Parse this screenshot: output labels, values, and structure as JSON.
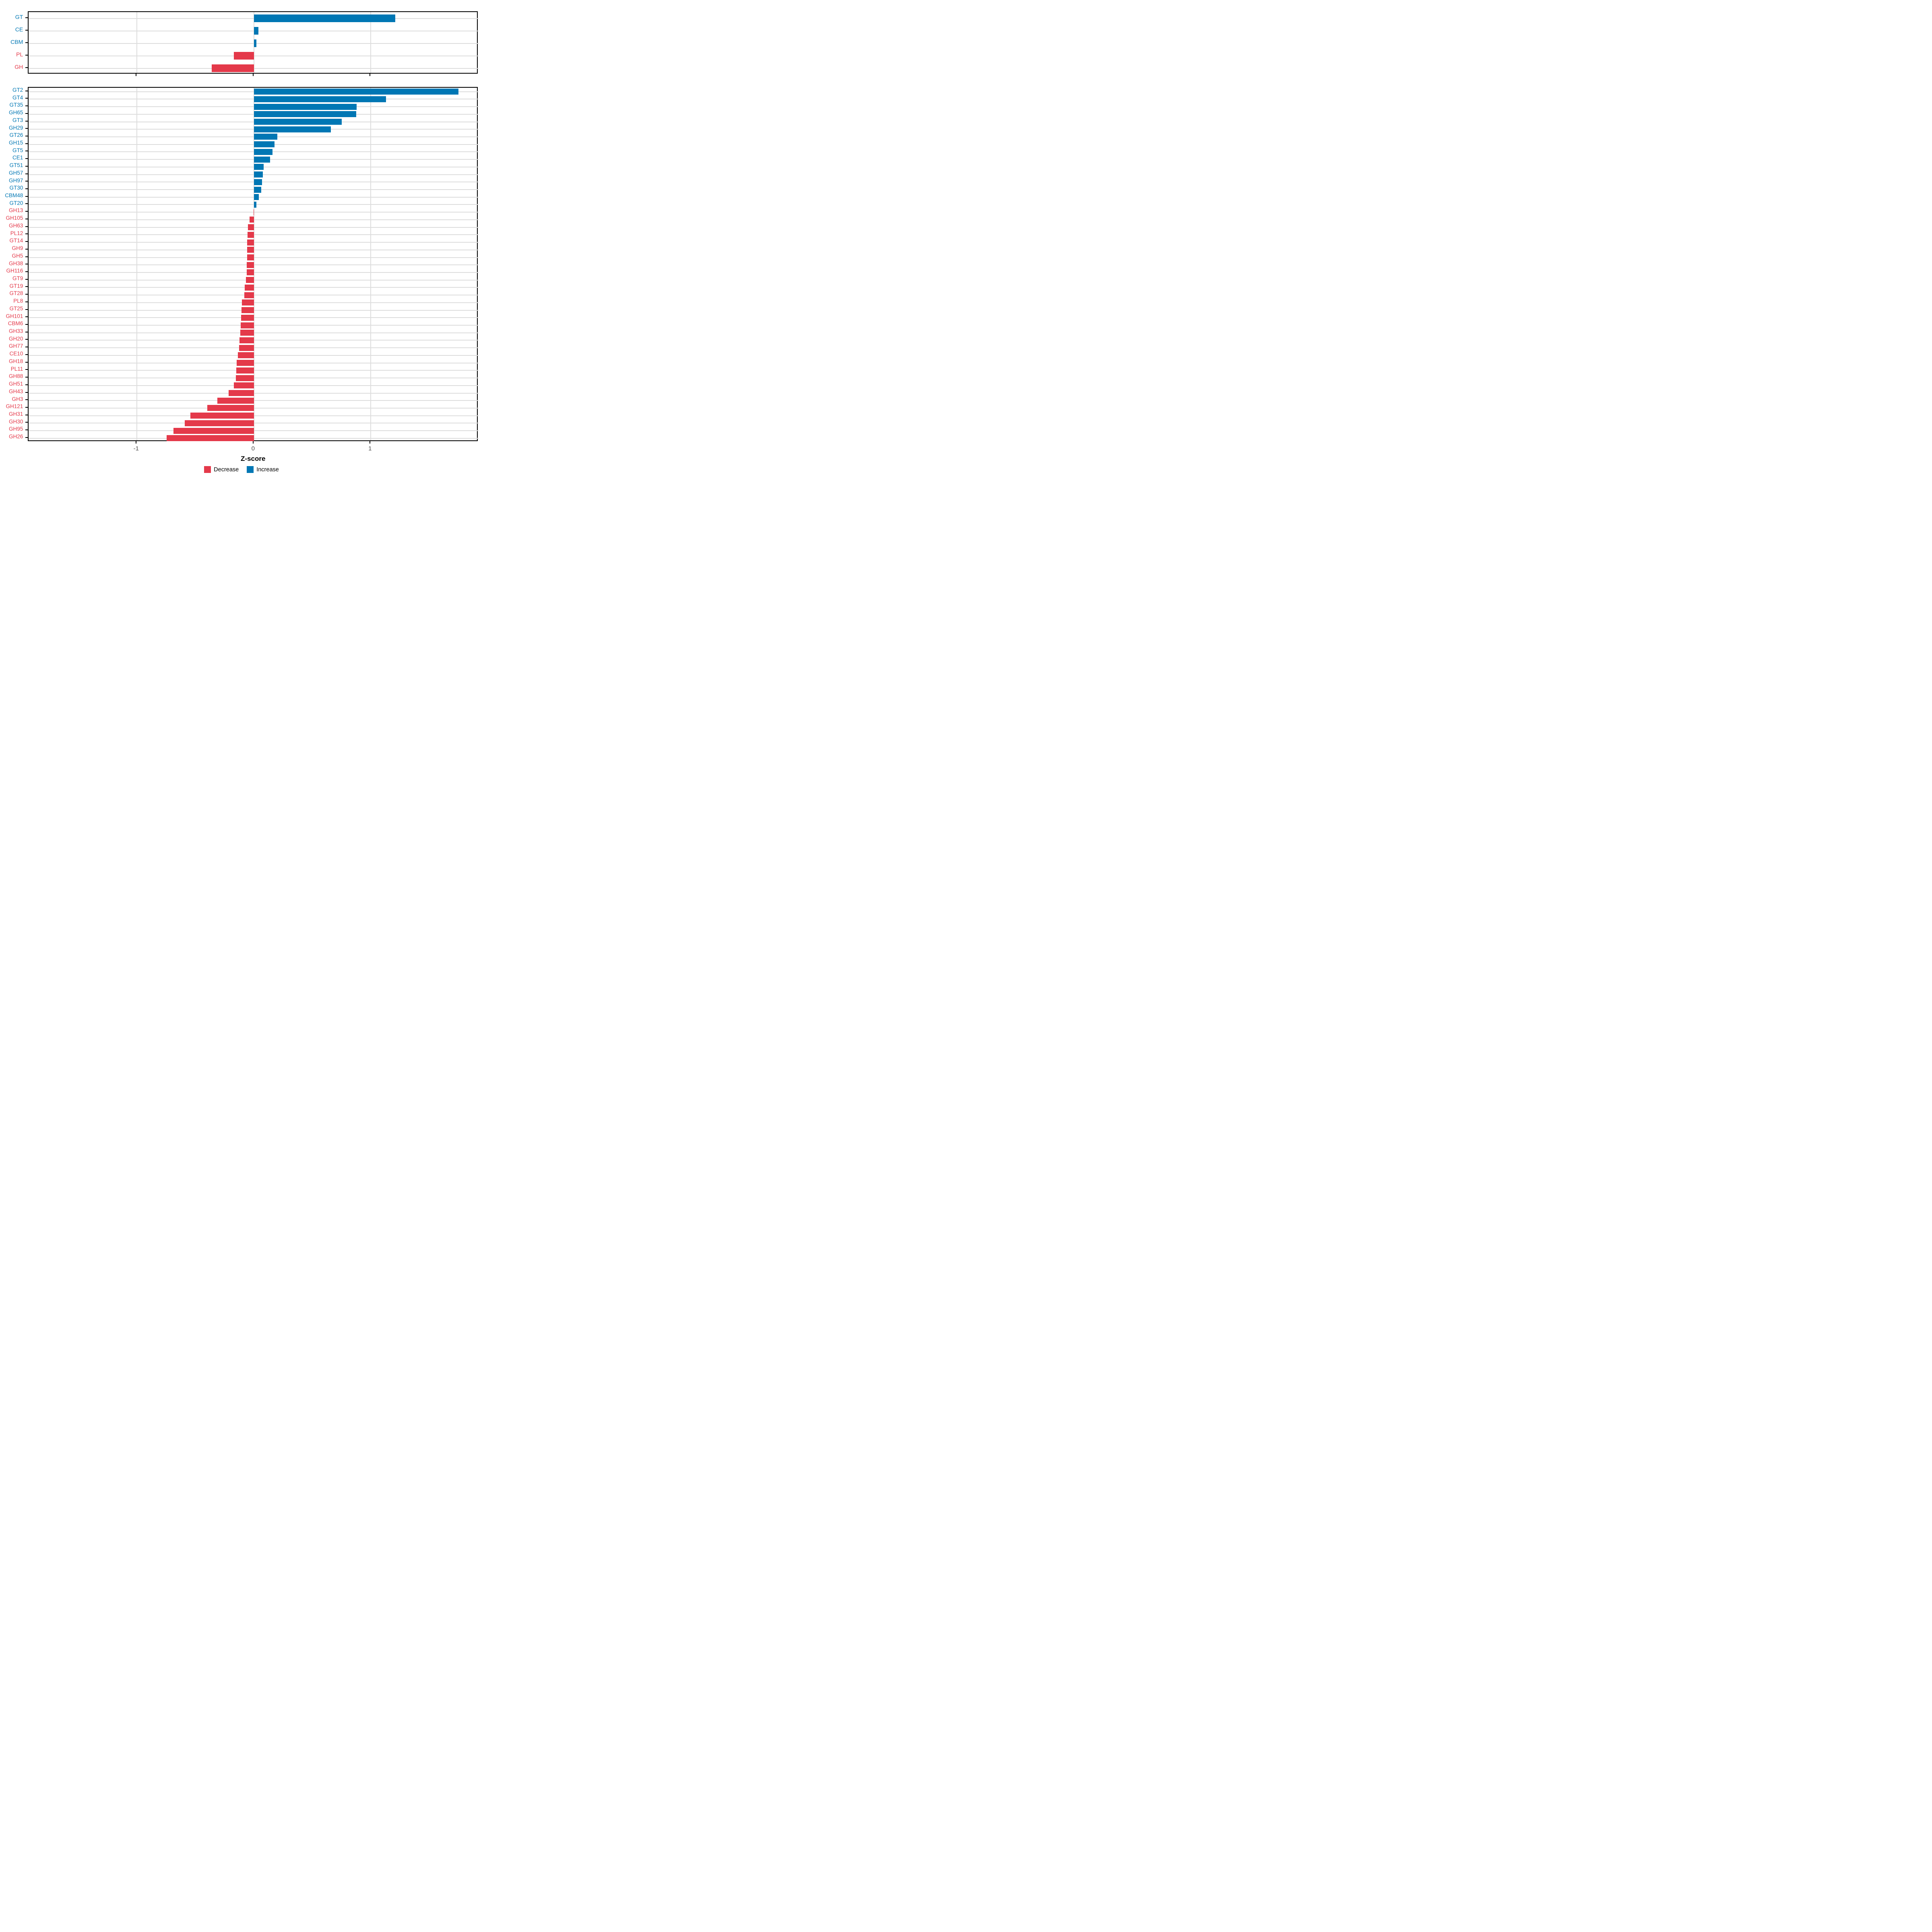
{
  "chart_data": [
    {
      "type": "bar",
      "orientation": "horizontal",
      "panel": "top",
      "title": "",
      "xlabel": "",
      "ylabel": "",
      "xlim": [
        -1.93,
        1.92
      ],
      "grid": true,
      "categories": [
        "GT",
        "CE",
        "CBM",
        "PL",
        "GH"
      ],
      "values": [
        1.21,
        0.04,
        0.02,
        -0.17,
        -0.36
      ],
      "directions": [
        "Increase",
        "Increase",
        "Increase",
        "Decrease",
        "Decrease"
      ]
    },
    {
      "type": "bar",
      "orientation": "horizontal",
      "panel": "bottom",
      "title": "",
      "xlabel": "Z-score",
      "ylabel": "",
      "xlim": [
        -1.93,
        1.92
      ],
      "grid": true,
      "categories": [
        "GT2",
        "GT4",
        "GT35",
        "GH65",
        "GT3",
        "GH29",
        "GT26",
        "GH15",
        "GT5",
        "CE1",
        "GT51",
        "GH57",
        "GH97",
        "GT30",
        "CBM48",
        "GT20",
        "GH13",
        "GH105",
        "GH63",
        "PL12",
        "GT14",
        "GH9",
        "GH5",
        "GH38",
        "GH116",
        "GT9",
        "GT19",
        "GT28",
        "PL8",
        "GT25",
        "GH101",
        "CBM6",
        "GH33",
        "GH20",
        "GH77",
        "CE10",
        "GH18",
        "PL11",
        "GH88",
        "GH51",
        "GH43",
        "GH3",
        "GH121",
        "GH31",
        "GH30",
        "GH95",
        "GH26"
      ],
      "values": [
        1.75,
        1.13,
        0.88,
        0.875,
        0.75,
        0.66,
        0.2,
        0.175,
        0.16,
        0.14,
        0.083,
        0.078,
        0.071,
        0.063,
        0.043,
        0.022,
        -0.003,
        -0.037,
        -0.05,
        -0.055,
        -0.057,
        -0.058,
        -0.059,
        -0.06,
        -0.062,
        -0.068,
        -0.077,
        -0.082,
        -0.104,
        -0.107,
        -0.11,
        -0.112,
        -0.116,
        -0.124,
        -0.127,
        -0.137,
        -0.146,
        -0.15,
        -0.155,
        -0.171,
        -0.217,
        -0.313,
        -0.399,
        -0.543,
        -0.59,
        -0.686,
        -0.745
      ],
      "directions": [
        "Increase",
        "Increase",
        "Increase",
        "Increase",
        "Increase",
        "Increase",
        "Increase",
        "Increase",
        "Increase",
        "Increase",
        "Increase",
        "Increase",
        "Increase",
        "Increase",
        "Increase",
        "Increase",
        "Decrease",
        "Decrease",
        "Decrease",
        "Decrease",
        "Decrease",
        "Decrease",
        "Decrease",
        "Decrease",
        "Decrease",
        "Decrease",
        "Decrease",
        "Decrease",
        "Decrease",
        "Decrease",
        "Decrease",
        "Decrease",
        "Decrease",
        "Decrease",
        "Decrease",
        "Decrease",
        "Decrease",
        "Decrease",
        "Decrease",
        "Decrease",
        "Decrease",
        "Decrease",
        "Decrease",
        "Decrease",
        "Decrease",
        "Decrease",
        "Decrease"
      ]
    }
  ],
  "axis": {
    "x_title": "Z-score",
    "x_tick_labels": [
      "-1",
      "0",
      "1"
    ],
    "x_tick_values": [
      -1,
      0,
      1
    ]
  },
  "legend": {
    "position": "bottom-center",
    "items": [
      {
        "label": "Decrease",
        "color": "#E4394A"
      },
      {
        "label": "Increase",
        "color": "#0077B4"
      }
    ]
  },
  "colors": {
    "increase": "#0077B4",
    "decrease": "#E4394A",
    "grid": "#DDDDDD",
    "tick_label": "#4D4D4D",
    "panel_border": "#000000",
    "background": "#FFFFFF"
  }
}
